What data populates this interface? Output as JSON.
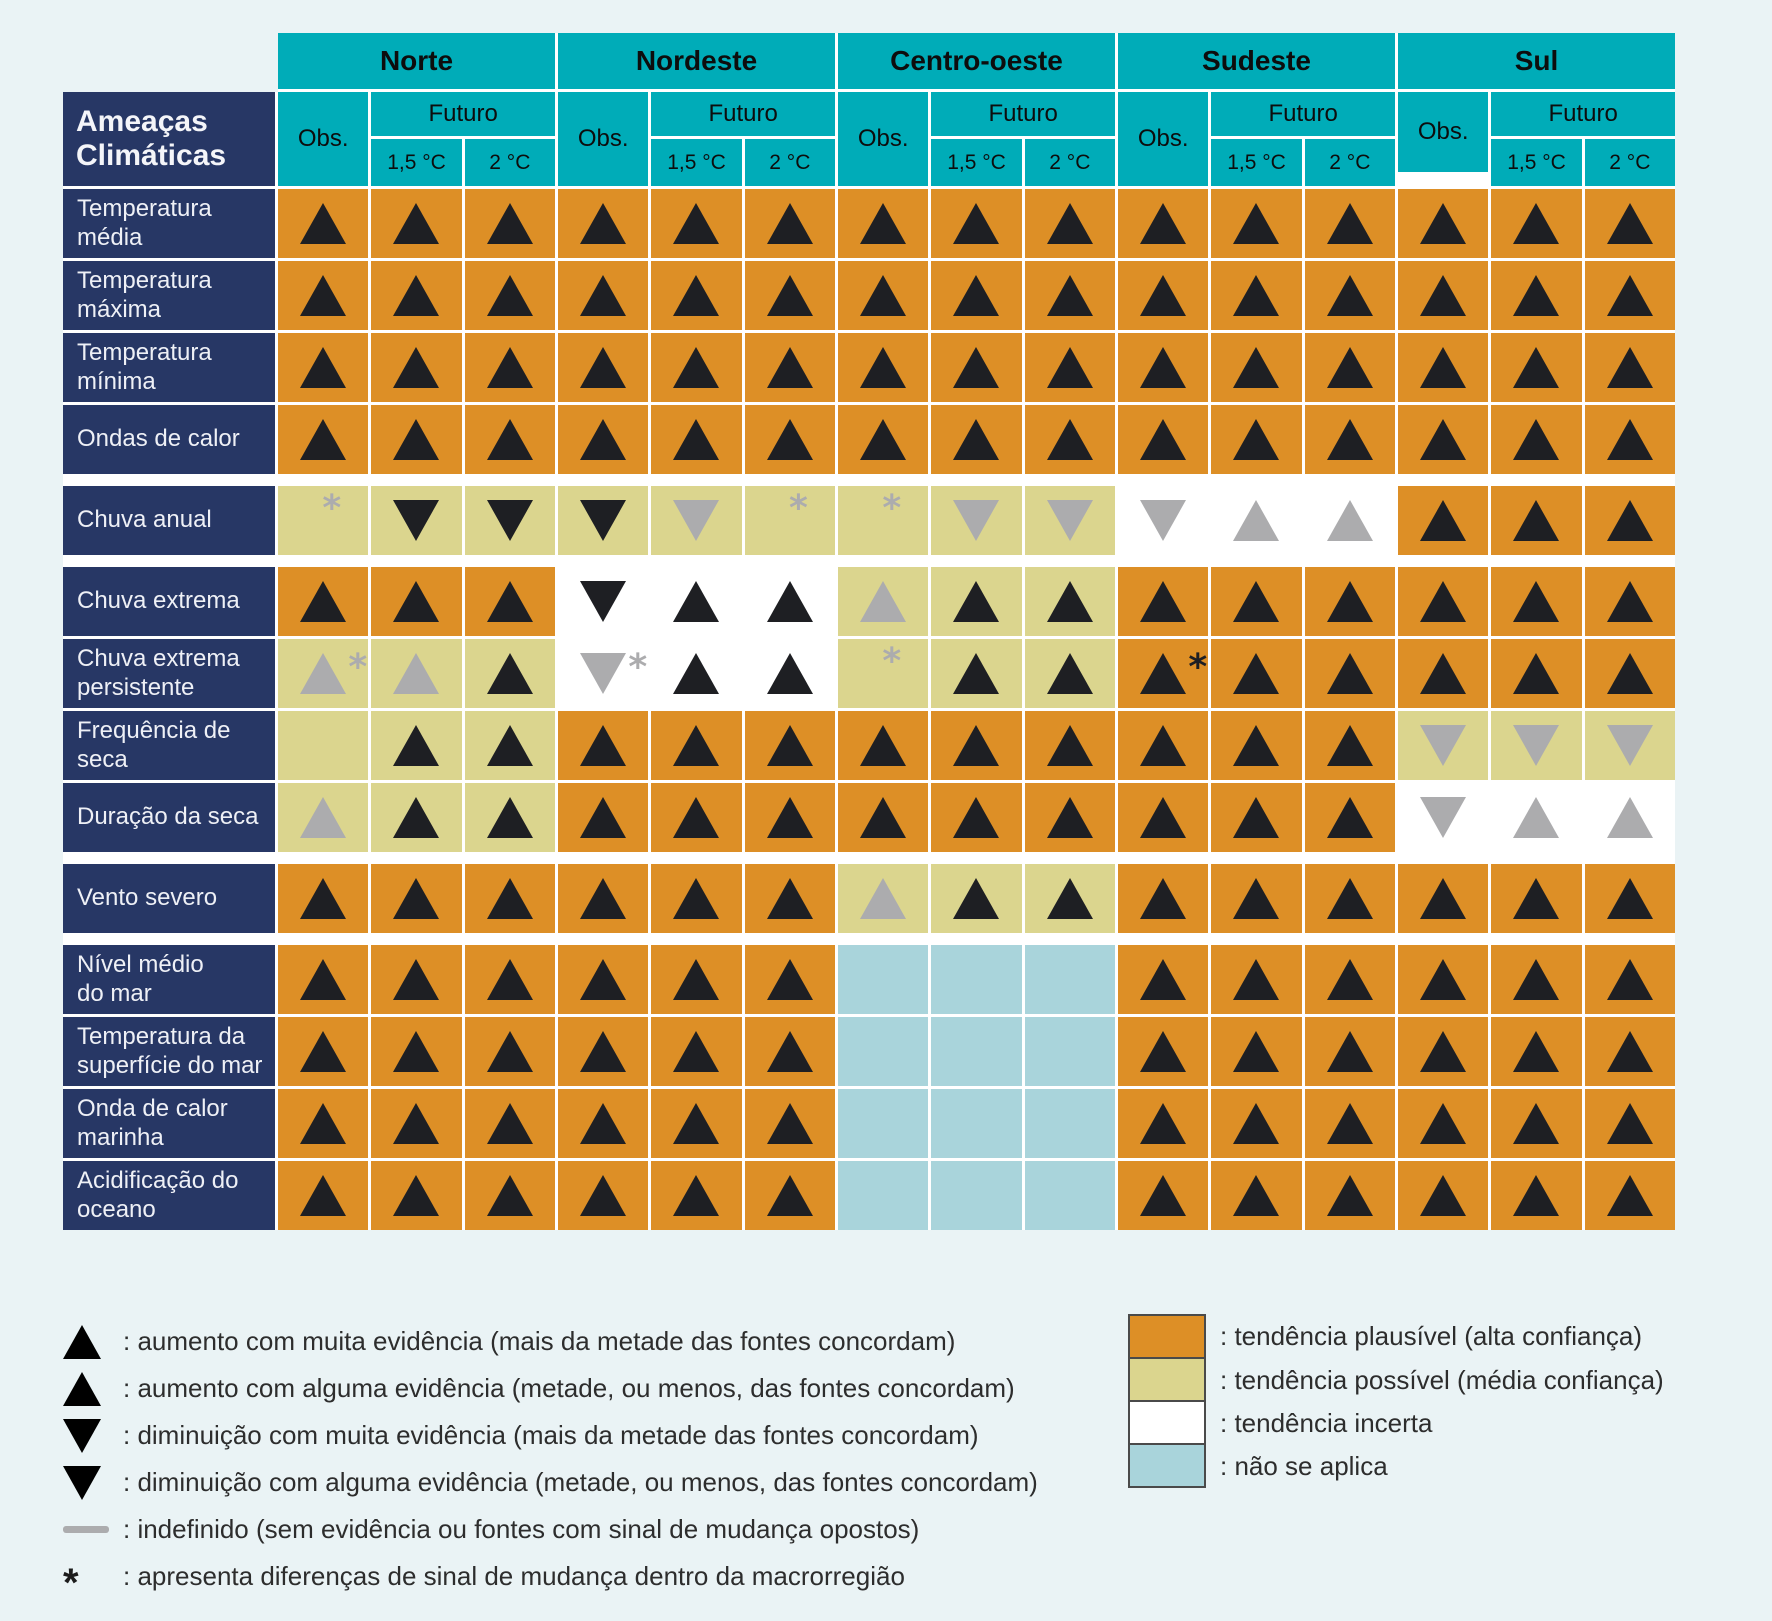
{
  "colors": {
    "teal": "#00ACB8",
    "navy": "#273765",
    "orange": "#DD8F26",
    "yellow": "#DBD58E",
    "white": "#FFFFFF",
    "blue": "#A9D4DB",
    "page_bg": "#EAF3F5",
    "symbol_black": "#1E1F23",
    "symbol_gray": "#ACACAE"
  },
  "header": {
    "title": "Ameaças\nClimáticas",
    "obs_label": "Obs.",
    "futuro_label": "Futuro",
    "temp_labels": [
      "1,5 °C",
      "2 °C"
    ],
    "regions": [
      "Norte",
      "Nordeste",
      "Centro-oeste",
      "Sudeste",
      "Sul"
    ]
  },
  "chart_data": {
    "type": "heatmap",
    "title": "Ameaças Climáticas",
    "columns_per_region": [
      "Obs.",
      "1,5 °C",
      "2 °C"
    ],
    "regions": [
      "Norte",
      "Nordeste",
      "Centro-oeste",
      "Sudeste",
      "Sul"
    ],
    "cell_encoding": "background(o=tendência plausível/orange, y=tendência possível/yellow, w=tendência incerta/white, b=não se aplica/blue) : symbol(UB=aumento muita evidência, UG=aumento alguma evidência, DB=diminuição muita evidência, DG=diminuição alguma evidência, DASH=indefinido, none) : star(sg=asterisco cinza, sb=asterisco preto)",
    "rows": [
      {
        "label": "Temperatura\nmédia",
        "cells": [
          "o:UB",
          "o:UB",
          "o:UB",
          "o:UB",
          "o:UB",
          "o:UB",
          "o:UB",
          "o:UB",
          "o:UB",
          "o:UB",
          "o:UB",
          "o:UB",
          "o:UB",
          "o:UB",
          "o:UB"
        ]
      },
      {
        "label": "Temperatura\nmáxima",
        "cells": [
          "o:UB",
          "o:UB",
          "o:UB",
          "o:UB",
          "o:UB",
          "o:UB",
          "o:UB",
          "o:UB",
          "o:UB",
          "o:UB",
          "o:UB",
          "o:UB",
          "o:UB",
          "o:UB",
          "o:UB"
        ]
      },
      {
        "label": "Temperatura\nmínima",
        "cells": [
          "o:UB",
          "o:UB",
          "o:UB",
          "o:UB",
          "o:UB",
          "o:UB",
          "o:UB",
          "o:UB",
          "o:UB",
          "o:UB",
          "o:UB",
          "o:UB",
          "o:UB",
          "o:UB",
          "o:UB"
        ]
      },
      {
        "label": "Ondas de calor",
        "cells": [
          "o:UB",
          "o:UB",
          "o:UB",
          "o:UB",
          "o:UB",
          "o:UB",
          "o:UB",
          "o:UB",
          "o:UB",
          "o:UB",
          "o:UB",
          "o:UB",
          "o:UB",
          "o:UB",
          "o:UB"
        ]
      },
      {
        "label": "Chuva anual",
        "cells": [
          "y:DASH:sg",
          "y:DB",
          "y:DB",
          "y:DB",
          "y:DG",
          "y:DASH:sg",
          "y:DASH:sg",
          "y:DG",
          "y:DG",
          "w:DG",
          "w:UG",
          "w:UG",
          "o:UB",
          "o:UB",
          "o:UB"
        ]
      },
      {
        "label": "Chuva extrema",
        "cells": [
          "o:UB",
          "o:UB",
          "o:UB",
          "w:DB",
          "w:UB",
          "w:UB",
          "y:UG",
          "y:UB",
          "y:UB",
          "o:UB",
          "o:UB",
          "o:UB",
          "o:UB",
          "o:UB",
          "o:UB"
        ]
      },
      {
        "label": "Chuva extrema\npersistente",
        "cells": [
          "y:UG:sg",
          "y:UG",
          "y:UB",
          "w:DG:sg",
          "w:UB",
          "w:UB",
          "y:DASH:sg",
          "y:UB",
          "y:UB",
          "o:UB:sb",
          "o:UB",
          "o:UB",
          "o:UB",
          "o:UB",
          "o:UB"
        ]
      },
      {
        "label": "Frequência de\nseca",
        "cells": [
          "y:DASH",
          "y:UB",
          "y:UB",
          "o:UB",
          "o:UB",
          "o:UB",
          "o:UB",
          "o:UB",
          "o:UB",
          "o:UB",
          "o:UB",
          "o:UB",
          "y:DG",
          "y:DG",
          "y:DG"
        ]
      },
      {
        "label": "Duração da seca",
        "cells": [
          "y:UG",
          "y:UB",
          "y:UB",
          "o:UB",
          "o:UB",
          "o:UB",
          "o:UB",
          "o:UB",
          "o:UB",
          "o:UB",
          "o:UB",
          "o:UB",
          "w:DG",
          "w:UG",
          "w:UG"
        ]
      },
      {
        "label": "Vento severo",
        "cells": [
          "o:UB",
          "o:UB",
          "o:UB",
          "o:UB",
          "o:UB",
          "o:UB",
          "y:UG",
          "y:UB",
          "y:UB",
          "o:UB",
          "o:UB",
          "o:UB",
          "o:UB",
          "o:UB",
          "o:UB"
        ]
      },
      {
        "label": "Nível médio\ndo mar",
        "cells": [
          "o:UB",
          "o:UB",
          "o:UB",
          "o:UB",
          "o:UB",
          "o:UB",
          "b:",
          "b:",
          "b:",
          "o:UB",
          "o:UB",
          "o:UB",
          "o:UB",
          "o:UB",
          "o:UB"
        ]
      },
      {
        "label": "Temperatura da\nsuperfície do mar",
        "cells": [
          "o:UB",
          "o:UB",
          "o:UB",
          "o:UB",
          "o:UB",
          "o:UB",
          "b:",
          "b:",
          "b:",
          "o:UB",
          "o:UB",
          "o:UB",
          "o:UB",
          "o:UB",
          "o:UB"
        ]
      },
      {
        "label": "Onda de calor\nmarinha",
        "cells": [
          "o:UB",
          "o:UB",
          "o:UB",
          "o:UB",
          "o:UB",
          "o:UB",
          "b:",
          "b:",
          "b:",
          "o:UB",
          "o:UB",
          "o:UB",
          "o:UB",
          "o:UB",
          "o:UB"
        ]
      },
      {
        "label": "Acidificação do\noceano",
        "cells": [
          "o:UB",
          "o:UB",
          "o:UB",
          "o:UB",
          "o:UB",
          "o:UB",
          "b:",
          "b:",
          "b:",
          "o:UB",
          "o:UB",
          "o:UB",
          "o:UB",
          "o:UB",
          "o:UB"
        ]
      }
    ],
    "group_gap_after_rows": [
      3,
      4,
      8,
      9
    ]
  },
  "legend_symbols": [
    {
      "symbol": "up-triangle-black",
      "text": ": aumento com muita evidência (mais da metade das fontes concordam)"
    },
    {
      "symbol": "up-triangle-gray",
      "text": ": aumento com alguma evidência (metade, ou menos, das fontes concordam)"
    },
    {
      "symbol": "down-triangle-black",
      "text": ": diminuição com muita evidência (mais da metade das fontes concordam)"
    },
    {
      "symbol": "down-triangle-gray",
      "text": ": diminuição com alguma evidência (metade, ou menos, das fontes concordam)"
    },
    {
      "symbol": "dash",
      "text": ": indefinido (sem evidência ou fontes com sinal de mudança opostos)"
    },
    {
      "symbol": "asterisk",
      "text": ": apresenta diferenças de sinal de mudança dentro da macrorregião"
    }
  ],
  "legend_colors": [
    {
      "key": "orange",
      "text": ": tendência plausível (alta confiança)"
    },
    {
      "key": "yellow",
      "text": ": tendência possível (média confiança)"
    },
    {
      "key": "white",
      "text": ": tendência incerta"
    },
    {
      "key": "blue",
      "text": ": não se aplica"
    }
  ]
}
